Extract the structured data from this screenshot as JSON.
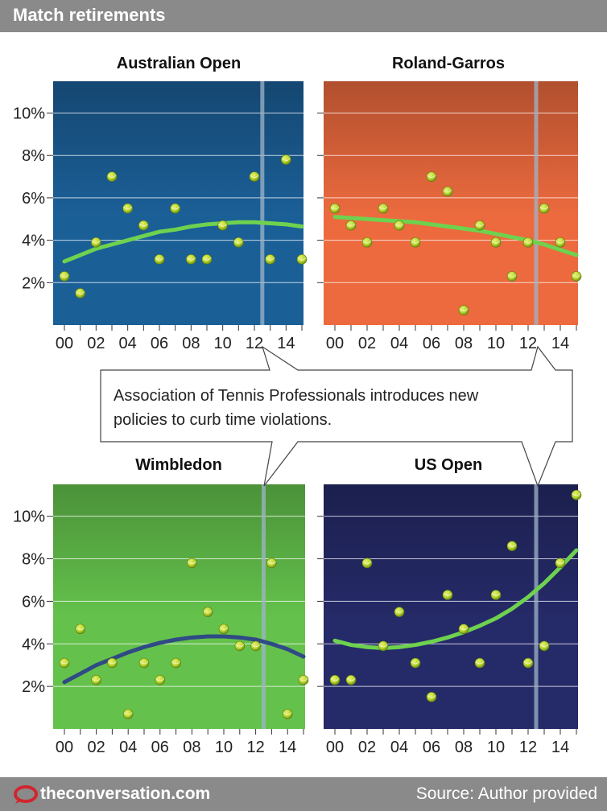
{
  "header": {
    "title": "Match retirements"
  },
  "footer": {
    "brand": "theconversation.com",
    "source": "Source: Author provided"
  },
  "colors": {
    "header_bg": "#8a8a8a",
    "trend_light": "#6ed24f",
    "trend_dark": "#2f4a84",
    "ball": "#b9d62c",
    "event_line": "#9fb4c8"
  },
  "callout": "Association of Tennis Professionals introduces new policies to curb time violations.",
  "chart_data": [
    {
      "type": "scatter",
      "title": "Australian Open",
      "background": "#1b5f97",
      "x_ticks": [
        "00",
        "02",
        "04",
        "06",
        "08",
        "10",
        "12",
        "14"
      ],
      "y_ticks": [
        "2%",
        "4%",
        "6%",
        "8%",
        "10%"
      ],
      "xlim": [
        2000,
        2015
      ],
      "ylim": [
        0,
        11.5
      ],
      "event_year": 2012.5,
      "trend": [
        3.0,
        3.3,
        3.6,
        3.8,
        4.0,
        4.2,
        4.4,
        4.5,
        4.65,
        4.75,
        4.8,
        4.85,
        4.85,
        4.8,
        4.75,
        4.65
      ],
      "trend_color": "#6ed24f",
      "points": [
        {
          "x": 2000,
          "y": 2.3
        },
        {
          "x": 2001,
          "y": 1.5
        },
        {
          "x": 2002,
          "y": 3.9
        },
        {
          "x": 2003,
          "y": 7.0
        },
        {
          "x": 2004,
          "y": 5.5
        },
        {
          "x": 2005,
          "y": 4.7
        },
        {
          "x": 2006,
          "y": 3.1
        },
        {
          "x": 2007,
          "y": 5.5
        },
        {
          "x": 2008,
          "y": 3.1
        },
        {
          "x": 2009,
          "y": 3.1
        },
        {
          "x": 2010,
          "y": 4.7
        },
        {
          "x": 2011,
          "y": 3.9
        },
        {
          "x": 2012,
          "y": 7.0
        },
        {
          "x": 2013,
          "y": 3.1
        },
        {
          "x": 2014,
          "y": 7.8
        },
        {
          "x": 2015,
          "y": 3.1
        }
      ]
    },
    {
      "type": "scatter",
      "title": "Roland-Garros",
      "background": "#ec6a3e",
      "x_ticks": [
        "00",
        "02",
        "04",
        "06",
        "08",
        "10",
        "12",
        "14"
      ],
      "y_ticks": [
        "2%",
        "4%",
        "6%",
        "8%",
        "10%"
      ],
      "xlim": [
        2000,
        2015
      ],
      "ylim": [
        0,
        11.5
      ],
      "event_year": 2012.5,
      "trend": [
        5.1,
        5.05,
        5.0,
        4.95,
        4.9,
        4.85,
        4.75,
        4.65,
        4.55,
        4.45,
        4.3,
        4.15,
        4.0,
        3.8,
        3.55,
        3.3
      ],
      "trend_color": "#6ed24f",
      "points": [
        {
          "x": 2000,
          "y": 5.5
        },
        {
          "x": 2001,
          "y": 4.7
        },
        {
          "x": 2002,
          "y": 3.9
        },
        {
          "x": 2003,
          "y": 5.5
        },
        {
          "x": 2004,
          "y": 4.7
        },
        {
          "x": 2005,
          "y": 3.9
        },
        {
          "x": 2006,
          "y": 7.0
        },
        {
          "x": 2007,
          "y": 6.3
        },
        {
          "x": 2008,
          "y": 0.7
        },
        {
          "x": 2009,
          "y": 4.7
        },
        {
          "x": 2010,
          "y": 3.9
        },
        {
          "x": 2011,
          "y": 2.3
        },
        {
          "x": 2012,
          "y": 3.9
        },
        {
          "x": 2013,
          "y": 5.5
        },
        {
          "x": 2014,
          "y": 3.9
        },
        {
          "x": 2015,
          "y": 2.3
        }
      ]
    },
    {
      "type": "scatter",
      "title": "Wimbledon",
      "background": "#64c24c",
      "x_ticks": [
        "00",
        "02",
        "04",
        "06",
        "08",
        "10",
        "12",
        "14"
      ],
      "y_ticks": [
        "2%",
        "4%",
        "6%",
        "8%",
        "10%"
      ],
      "xlim": [
        2000,
        2015
      ],
      "ylim": [
        0,
        11.5
      ],
      "event_year": 2012.5,
      "trend": [
        2.2,
        2.6,
        3.0,
        3.3,
        3.6,
        3.85,
        4.05,
        4.2,
        4.3,
        4.35,
        4.35,
        4.3,
        4.2,
        4.0,
        3.75,
        3.4
      ],
      "trend_color": "#2f4a84",
      "points": [
        {
          "x": 2000,
          "y": 3.1
        },
        {
          "x": 2001,
          "y": 4.7
        },
        {
          "x": 2002,
          "y": 2.3
        },
        {
          "x": 2003,
          "y": 3.1
        },
        {
          "x": 2004,
          "y": 0.7
        },
        {
          "x": 2005,
          "y": 3.1
        },
        {
          "x": 2006,
          "y": 2.3
        },
        {
          "x": 2007,
          "y": 3.1
        },
        {
          "x": 2008,
          "y": 7.8
        },
        {
          "x": 2009,
          "y": 5.5
        },
        {
          "x": 2010,
          "y": 4.7
        },
        {
          "x": 2011,
          "y": 3.9
        },
        {
          "x": 2012,
          "y": 3.9
        },
        {
          "x": 2013,
          "y": 7.8
        },
        {
          "x": 2014,
          "y": 0.7
        },
        {
          "x": 2015,
          "y": 2.3
        }
      ]
    },
    {
      "type": "scatter",
      "title": "US Open",
      "background": "#252a68",
      "x_ticks": [
        "00",
        "02",
        "04",
        "06",
        "08",
        "10",
        "12",
        "14"
      ],
      "y_ticks": [
        "2%",
        "4%",
        "6%",
        "8%",
        "10%"
      ],
      "xlim": [
        2000,
        2015
      ],
      "ylim": [
        0,
        11.5
      ],
      "event_year": 2012.5,
      "trend": [
        4.15,
        3.95,
        3.85,
        3.8,
        3.85,
        3.95,
        4.1,
        4.3,
        4.55,
        4.85,
        5.2,
        5.65,
        6.2,
        6.85,
        7.6,
        8.4
      ],
      "trend_color": "#6ed24f",
      "points": [
        {
          "x": 2000,
          "y": 2.3
        },
        {
          "x": 2001,
          "y": 2.3
        },
        {
          "x": 2002,
          "y": 7.8
        },
        {
          "x": 2003,
          "y": 3.9
        },
        {
          "x": 2004,
          "y": 5.5
        },
        {
          "x": 2005,
          "y": 3.1
        },
        {
          "x": 2006,
          "y": 1.5
        },
        {
          "x": 2007,
          "y": 6.3
        },
        {
          "x": 2008,
          "y": 4.7
        },
        {
          "x": 2009,
          "y": 3.1
        },
        {
          "x": 2010,
          "y": 6.3
        },
        {
          "x": 2011,
          "y": 8.6
        },
        {
          "x": 2012,
          "y": 3.1
        },
        {
          "x": 2013,
          "y": 3.9
        },
        {
          "x": 2014,
          "y": 7.8
        },
        {
          "x": 2015,
          "y": 11.0
        }
      ]
    }
  ]
}
